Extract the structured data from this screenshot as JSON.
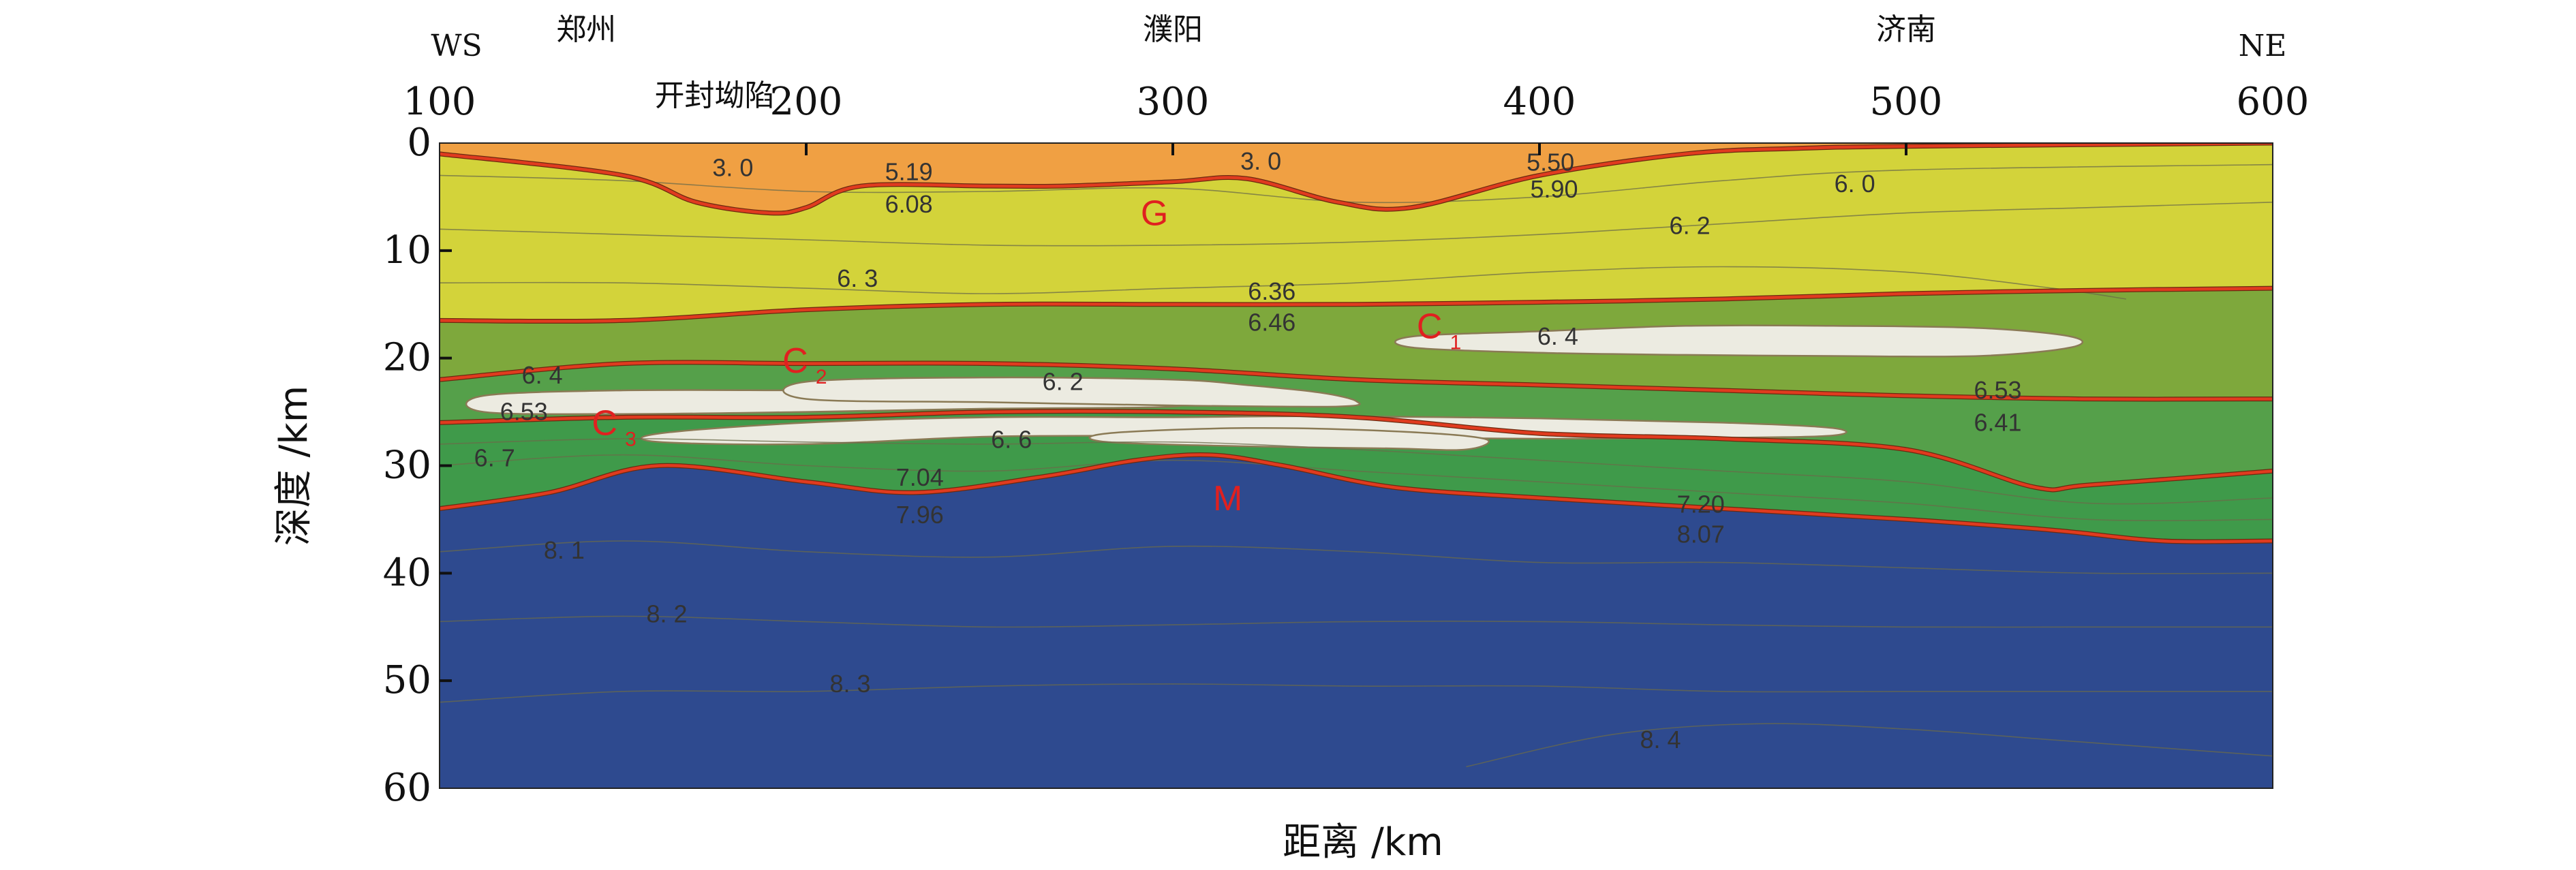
{
  "chart_data": {
    "type": "area",
    "xlabel": "距离 /km",
    "ylabel": "深度 /km",
    "xlim": [
      100,
      600
    ],
    "ylim": [
      0,
      60
    ],
    "x_ticks": [
      100,
      200,
      300,
      400,
      500,
      600
    ],
    "y_ticks": [
      0,
      10,
      20,
      30,
      40,
      50,
      60
    ],
    "direction_labels": {
      "left": "WS",
      "right": "NE"
    },
    "places": [
      {
        "name": "郑州",
        "x": 140
      },
      {
        "name": "开封坳陷",
        "x": 175
      },
      {
        "name": "濮阳",
        "x": 300
      },
      {
        "name": "济南",
        "x": 500
      }
    ],
    "interfaces": [
      {
        "name": "G",
        "label": "G",
        "color": "#e03b1f",
        "points": [
          [
            100,
            1
          ],
          [
            150,
            3
          ],
          [
            170,
            5.5
          ],
          [
            190,
            6.5
          ],
          [
            200,
            6
          ],
          [
            215,
            4
          ],
          [
            250,
            4
          ],
          [
            270,
            4
          ],
          [
            300,
            3.6
          ],
          [
            320,
            3.3
          ],
          [
            345,
            5.5
          ],
          [
            365,
            6
          ],
          [
            400,
            3
          ],
          [
            440,
            1
          ],
          [
            470,
            0.5
          ],
          [
            500,
            0.3
          ],
          [
            600,
            0
          ]
        ]
      },
      {
        "name": "C1",
        "label": "C",
        "subscript": "1",
        "color": "#e03b1f",
        "points": [
          [
            100,
            16.5
          ],
          [
            150,
            16.5
          ],
          [
            200,
            15.5
          ],
          [
            250,
            15
          ],
          [
            300,
            15
          ],
          [
            350,
            15
          ],
          [
            400,
            14.8
          ],
          [
            450,
            14.5
          ],
          [
            500,
            14
          ],
          [
            550,
            13.7
          ],
          [
            600,
            13.5
          ]
        ]
      },
      {
        "name": "C2",
        "label": "C",
        "subscript": "2",
        "color": "#e03b1f",
        "points": [
          [
            100,
            22
          ],
          [
            150,
            20.5
          ],
          [
            200,
            20.5
          ],
          [
            250,
            20.5
          ],
          [
            300,
            21
          ],
          [
            350,
            22
          ],
          [
            400,
            22.5
          ],
          [
            450,
            23
          ],
          [
            500,
            23.5
          ],
          [
            550,
            23.8
          ],
          [
            600,
            23.8
          ]
        ]
      },
      {
        "name": "C3",
        "label": "C",
        "subscript": "3",
        "color": "#e03b1f",
        "points": [
          [
            100,
            26
          ],
          [
            150,
            25.5
          ],
          [
            200,
            25.5
          ],
          [
            250,
            25
          ],
          [
            300,
            25
          ],
          [
            350,
            25.5
          ],
          [
            400,
            27
          ],
          [
            450,
            27.5
          ],
          [
            500,
            28.5
          ],
          [
            535,
            32
          ],
          [
            550,
            31.8
          ],
          [
            600,
            30.5
          ]
        ]
      },
      {
        "name": "M",
        "label": "M",
        "color": "#e03b1f",
        "points": [
          [
            100,
            34
          ],
          [
            130,
            32.5
          ],
          [
            160,
            30
          ],
          [
            200,
            31.5
          ],
          [
            230,
            32.5
          ],
          [
            265,
            31
          ],
          [
            290,
            29.5
          ],
          [
            310,
            29
          ],
          [
            330,
            30
          ],
          [
            360,
            32
          ],
          [
            400,
            33
          ],
          [
            450,
            34
          ],
          [
            500,
            35
          ],
          [
            540,
            36
          ],
          [
            570,
            37
          ],
          [
            600,
            37
          ]
        ]
      }
    ],
    "layers": [
      {
        "name": "upper-sediment",
        "top": "surface",
        "bottom": "G",
        "color": "#f0a043"
      },
      {
        "name": "upper-crust",
        "top": "G",
        "bottom": "C1",
        "color": "#d3d33a"
      },
      {
        "name": "middle-crust",
        "top": "C1",
        "bottom": "C2",
        "color": "#7ea83c"
      },
      {
        "name": "lower-crust-upper",
        "top": "C2",
        "bottom": "C3",
        "color": "#55a04a"
      },
      {
        "name": "lower-crust-lower",
        "top": "C3",
        "bottom": "M",
        "color": "#3f9a4a"
      },
      {
        "name": "upper-mantle",
        "top": "M",
        "bottom": "bottom",
        "color": "#2e4a8f"
      }
    ],
    "low_velocity_zones": [
      {
        "name": "lvz-1",
        "color": "#ecebe1",
        "outline": [
          [
            112,
            23.5
          ],
          [
            150,
            23
          ],
          [
            200,
            23
          ],
          [
            240,
            23
          ],
          [
            270,
            23.2
          ],
          [
            290,
            23.5
          ],
          [
            300,
            23.6
          ],
          [
            300,
            24.5
          ],
          [
            250,
            24.7
          ],
          [
            200,
            25
          ],
          [
            150,
            25.2
          ],
          [
            112,
            25
          ]
        ]
      },
      {
        "name": "lvz-2",
        "color": "#ecebe1",
        "outline": [
          [
            200,
            22.2
          ],
          [
            250,
            21.8
          ],
          [
            300,
            22
          ],
          [
            320,
            22.5
          ],
          [
            340,
            23.2
          ],
          [
            350,
            24
          ],
          [
            345,
            24.5
          ],
          [
            300,
            24.4
          ],
          [
            250,
            24.1
          ],
          [
            200,
            23.8
          ]
        ]
      },
      {
        "name": "lvz-3",
        "color": "#ecebe1",
        "outline": [
          [
            160,
            27
          ],
          [
            200,
            26
          ],
          [
            250,
            25.5
          ],
          [
            300,
            25.5
          ],
          [
            340,
            25.4
          ],
          [
            400,
            25.6
          ],
          [
            450,
            26
          ],
          [
            480,
            26.5
          ],
          [
            480,
            27.2
          ],
          [
            450,
            27.4
          ],
          [
            400,
            27.5
          ],
          [
            350,
            27.3
          ],
          [
            330,
            27
          ],
          [
            300,
            27.2
          ],
          [
            250,
            27.3
          ],
          [
            200,
            28
          ],
          [
            160,
            27.8
          ]
        ]
      },
      {
        "name": "lvz-4",
        "color": "#ecebe1",
        "outline": [
          [
            365,
            18
          ],
          [
            400,
            17.5
          ],
          [
            440,
            17
          ],
          [
            480,
            17
          ],
          [
            520,
            17.2
          ],
          [
            545,
            18
          ],
          [
            545,
            19
          ],
          [
            520,
            19.8
          ],
          [
            480,
            19.8
          ],
          [
            440,
            19.7
          ],
          [
            400,
            19.5
          ],
          [
            365,
            19
          ]
        ]
      },
      {
        "name": "lvz-5",
        "color": "#ecebe1",
        "outline": [
          [
            282,
            27
          ],
          [
            320,
            26.5
          ],
          [
            360,
            26.8
          ],
          [
            385,
            27.5
          ],
          [
            380,
            28.5
          ],
          [
            360,
            28.4
          ],
          [
            320,
            28.2
          ],
          [
            282,
            27.8
          ]
        ]
      }
    ],
    "contours": [
      [
        [
          100,
          8
        ],
        [
          150,
          8.5
        ],
        [
          200,
          9
        ],
        [
          250,
          9.5
        ],
        [
          300,
          9.5
        ],
        [
          350,
          9.2
        ],
        [
          400,
          8.5
        ],
        [
          450,
          7.5
        ],
        [
          500,
          6.5
        ],
        [
          550,
          6
        ],
        [
          600,
          5.5
        ]
      ],
      [
        [
          100,
          13
        ],
        [
          150,
          13
        ],
        [
          200,
          13.5
        ],
        [
          250,
          14
        ],
        [
          300,
          13.5
        ],
        [
          350,
          13
        ],
        [
          400,
          12
        ],
        [
          450,
          11.5
        ],
        [
          500,
          12
        ],
        [
          540,
          13.5
        ],
        [
          560,
          14.5
        ]
      ],
      [
        [
          100,
          3
        ],
        [
          150,
          3.5
        ],
        [
          200,
          4.5
        ],
        [
          250,
          4.5
        ],
        [
          300,
          4.2
        ],
        [
          350,
          5.5
        ],
        [
          400,
          5
        ],
        [
          450,
          3.5
        ],
        [
          500,
          2.5
        ],
        [
          600,
          2
        ]
      ],
      [
        [
          100,
          28
        ],
        [
          150,
          27.5
        ],
        [
          200,
          27.8
        ],
        [
          250,
          28
        ],
        [
          300,
          27.8
        ],
        [
          350,
          28.5
        ],
        [
          400,
          29.5
        ],
        [
          450,
          30.5
        ],
        [
          500,
          31.5
        ],
        [
          550,
          33.5
        ],
        [
          600,
          33
        ]
      ],
      [
        [
          100,
          30
        ],
        [
          150,
          29
        ],
        [
          200,
          30
        ],
        [
          250,
          30.5
        ],
        [
          300,
          29.5
        ],
        [
          350,
          30.5
        ],
        [
          400,
          31.5
        ],
        [
          450,
          32.5
        ],
        [
          500,
          33.5
        ],
        [
          550,
          35
        ],
        [
          600,
          35
        ]
      ],
      [
        [
          100,
          38
        ],
        [
          150,
          37
        ],
        [
          200,
          38
        ],
        [
          250,
          38.5
        ],
        [
          300,
          37.5
        ],
        [
          350,
          38
        ],
        [
          400,
          39
        ],
        [
          450,
          39
        ],
        [
          500,
          39.5
        ],
        [
          550,
          40
        ],
        [
          600,
          40
        ]
      ],
      [
        [
          100,
          44.5
        ],
        [
          150,
          44
        ],
        [
          200,
          44.5
        ],
        [
          250,
          45
        ],
        [
          300,
          44.8
        ],
        [
          350,
          44.5
        ],
        [
          400,
          44.5
        ],
        [
          450,
          44.8
        ],
        [
          500,
          45
        ],
        [
          550,
          45
        ],
        [
          600,
          45
        ]
      ],
      [
        [
          100,
          52
        ],
        [
          150,
          51
        ],
        [
          200,
          51
        ],
        [
          250,
          50.5
        ],
        [
          300,
          50.3
        ],
        [
          350,
          50.5
        ],
        [
          400,
          50.5
        ],
        [
          450,
          51
        ],
        [
          500,
          51
        ],
        [
          550,
          51
        ],
        [
          600,
          51
        ]
      ],
      [
        [
          380,
          58
        ],
        [
          420,
          55
        ],
        [
          460,
          54
        ],
        [
          500,
          54.5
        ],
        [
          540,
          55.5
        ],
        [
          580,
          56.5
        ],
        [
          600,
          57
        ]
      ]
    ],
    "velocity_labels": [
      {
        "text": "3. 0",
        "x": 180,
        "y": 2.3
      },
      {
        "text": "5.19",
        "x": 228,
        "y": 2.7
      },
      {
        "text": "6.08",
        "x": 228,
        "y": 5.7
      },
      {
        "text": "3. 0",
        "x": 324,
        "y": 1.7
      },
      {
        "text": "5.50",
        "x": 403,
        "y": 1.8
      },
      {
        "text": "5.90",
        "x": 404,
        "y": 4.3
      },
      {
        "text": "6. 0",
        "x": 486,
        "y": 3.8
      },
      {
        "text": "6. 2",
        "x": 441,
        "y": 7.7
      },
      {
        "text": "6. 3",
        "x": 214,
        "y": 12.6
      },
      {
        "text": "6.36",
        "x": 327,
        "y": 13.8
      },
      {
        "text": "6.46",
        "x": 327,
        "y": 16.7
      },
      {
        "text": "6. 4",
        "x": 405,
        "y": 18
      },
      {
        "text": "6. 4",
        "x": 128,
        "y": 21.6
      },
      {
        "text": "6. 2",
        "x": 270,
        "y": 22.2
      },
      {
        "text": "6.53",
        "x": 123,
        "y": 25
      },
      {
        "text": "6.53",
        "x": 525,
        "y": 23
      },
      {
        "text": "6.41",
        "x": 525,
        "y": 26
      },
      {
        "text": "6. 6",
        "x": 256,
        "y": 27.6
      },
      {
        "text": "6. 7",
        "x": 115,
        "y": 29.3
      },
      {
        "text": "7.04",
        "x": 231,
        "y": 31.1
      },
      {
        "text": "7.96",
        "x": 231,
        "y": 34.6
      },
      {
        "text": "7.20",
        "x": 444,
        "y": 33.6
      },
      {
        "text": "8.07",
        "x": 444,
        "y": 36.4
      },
      {
        "text": "8. 1",
        "x": 134,
        "y": 37.9
      },
      {
        "text": "8. 2",
        "x": 162,
        "y": 43.8
      },
      {
        "text": "8. 3",
        "x": 212,
        "y": 50.3
      },
      {
        "text": "8. 4",
        "x": 433,
        "y": 55.5
      }
    ],
    "interface_labels": [
      {
        "text": "G",
        "sub": "",
        "x": 295,
        "y": 6.5
      },
      {
        "text": "C",
        "sub": "1",
        "x": 370,
        "y": 17
      },
      {
        "text": "C",
        "sub": "2",
        "x": 197,
        "y": 20.2
      },
      {
        "text": "C",
        "sub": "3",
        "x": 145,
        "y": 26
      },
      {
        "text": "M",
        "sub": "",
        "x": 315,
        "y": 33
      }
    ]
  }
}
